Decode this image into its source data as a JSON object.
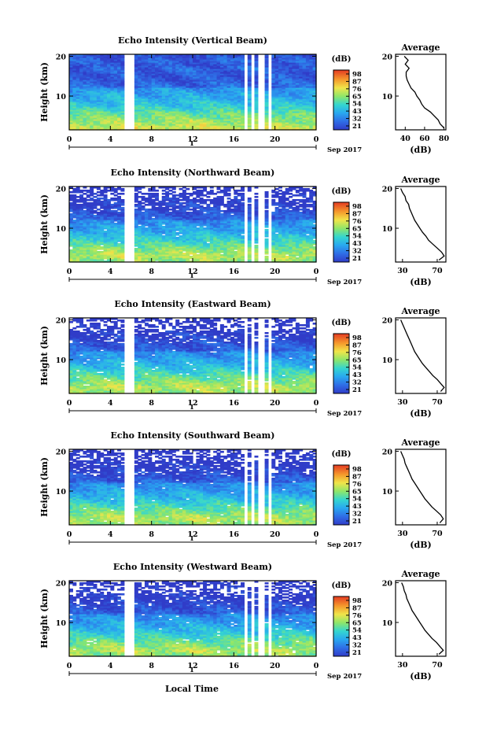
{
  "figure": {
    "xlabel": "Local Time",
    "day_label": "1",
    "date_label": "Sep 2017",
    "average_title": "Average",
    "average_xlabel": "(dB)",
    "colorbar_unit": "(dB)",
    "ylabel": "Height (km)"
  },
  "chart_data": [
    {
      "type": "heatmap",
      "title": "Echo Intensity (Vertical Beam)",
      "xlabel": "Local Time",
      "ylabel": "Height (km)",
      "x_ticks": [
        "0",
        "4",
        "8",
        "12",
        "16",
        "20",
        "0"
      ],
      "xlim": [
        0,
        24
      ],
      "y_ticks": [
        "10",
        "20"
      ],
      "ylim": [
        1.5,
        20.5
      ],
      "colorbar": {
        "label": "(dB)",
        "ticks": [
          "98",
          "87",
          "76",
          "65",
          "54",
          "43",
          "32",
          "21"
        ],
        "range": [
          21,
          98
        ]
      },
      "data_gaps_hours": [
        [
          5.4,
          6.2
        ],
        [
          16.9,
          17.3
        ],
        [
          17.7,
          18.1
        ],
        [
          18.5,
          18.9
        ],
        [
          19.3,
          19.7
        ]
      ],
      "average_profile": {
        "title": "Average",
        "xlabel": "(dB)",
        "x_ticks": [
          "40",
          "60",
          "80"
        ],
        "xlim": [
          30,
          82
        ],
        "height_km": [
          2,
          3,
          4,
          5,
          6,
          7,
          8,
          9,
          10,
          11,
          12,
          13,
          14,
          15,
          16,
          17,
          18,
          19,
          20
        ],
        "intensity_db": [
          80,
          76,
          74,
          70,
          66,
          60,
          57,
          55,
          52,
          50,
          46,
          44,
          42,
          41,
          41,
          44,
          40,
          43,
          39
        ]
      }
    },
    {
      "type": "heatmap",
      "title": "Echo Intensity (Northward Beam)",
      "xlabel": "Local Time",
      "ylabel": "Height (km)",
      "x_ticks": [
        "0",
        "4",
        "8",
        "12",
        "16",
        "20",
        "0"
      ],
      "xlim": [
        0,
        24
      ],
      "y_ticks": [
        "10",
        "20"
      ],
      "ylim": [
        1.5,
        20.5
      ],
      "colorbar": {
        "label": "(dB)",
        "ticks": [
          "98",
          "87",
          "76",
          "65",
          "54",
          "43",
          "32",
          "21"
        ],
        "range": [
          21,
          98
        ]
      },
      "data_gaps_hours": [
        [
          5.4,
          6.2
        ],
        [
          16.9,
          17.3
        ],
        [
          17.7,
          18.1
        ],
        [
          18.5,
          18.9
        ],
        [
          19.3,
          19.7
        ]
      ],
      "average_profile": {
        "title": "Average",
        "xlabel": "(dB)",
        "x_ticks": [
          "30",
          "70"
        ],
        "xlim": [
          22,
          80
        ],
        "height_km": [
          2,
          3,
          4,
          5,
          6,
          7,
          8,
          9,
          10,
          11,
          12,
          13,
          14,
          15,
          16,
          17,
          18,
          19,
          20
        ],
        "intensity_db": [
          72,
          78,
          75,
          70,
          65,
          60,
          57,
          53,
          50,
          47,
          44,
          42,
          40,
          38,
          37,
          34,
          33,
          30,
          28
        ]
      }
    },
    {
      "type": "heatmap",
      "title": "Echo Intensity (Eastward Beam)",
      "xlabel": "Local Time",
      "ylabel": "Height (km)",
      "x_ticks": [
        "0",
        "4",
        "8",
        "12",
        "16",
        "20",
        "0"
      ],
      "xlim": [
        0,
        24
      ],
      "y_ticks": [
        "10",
        "20"
      ],
      "ylim": [
        1.5,
        20.5
      ],
      "colorbar": {
        "label": "(dB)",
        "ticks": [
          "98",
          "87",
          "76",
          "65",
          "54",
          "43",
          "32",
          "21"
        ],
        "range": [
          21,
          98
        ]
      },
      "data_gaps_hours": [
        [
          5.4,
          6.2
        ],
        [
          16.9,
          17.3
        ],
        [
          17.7,
          18.1
        ],
        [
          18.5,
          18.9
        ],
        [
          19.3,
          19.7
        ]
      ],
      "average_profile": {
        "title": "Average",
        "xlabel": "(dB)",
        "x_ticks": [
          "30",
          "70"
        ],
        "xlim": [
          22,
          80
        ],
        "height_km": [
          2,
          3,
          4,
          5,
          6,
          7,
          8,
          9,
          10,
          11,
          12,
          13,
          14,
          15,
          16,
          17,
          18,
          19,
          20
        ],
        "intensity_db": [
          74,
          78,
          74,
          70,
          65,
          61,
          57,
          53,
          50,
          47,
          44,
          42,
          40,
          38,
          36,
          34,
          32,
          30,
          28
        ]
      }
    },
    {
      "type": "heatmap",
      "title": "Echo Intensity (Southward Beam)",
      "xlabel": "Local Time",
      "ylabel": "Height (km)",
      "x_ticks": [
        "0",
        "4",
        "8",
        "12",
        "16",
        "20",
        "0"
      ],
      "xlim": [
        0,
        24
      ],
      "y_ticks": [
        "10",
        "20"
      ],
      "ylim": [
        1.5,
        20.5
      ],
      "colorbar": {
        "label": "(dB)",
        "ticks": [
          "98",
          "87",
          "76",
          "65",
          "54",
          "43",
          "32",
          "21"
        ],
        "range": [
          21,
          98
        ]
      },
      "data_gaps_hours": [
        [
          5.4,
          6.2
        ],
        [
          16.9,
          17.3
        ],
        [
          17.7,
          18.1
        ],
        [
          18.5,
          18.9
        ],
        [
          19.3,
          19.7
        ]
      ],
      "average_profile": {
        "title": "Average",
        "xlabel": "(dB)",
        "x_ticks": [
          "30",
          "70"
        ],
        "xlim": [
          22,
          80
        ],
        "height_km": [
          2,
          3,
          4,
          5,
          6,
          7,
          8,
          9,
          10,
          11,
          12,
          13,
          14,
          15,
          16,
          17,
          18,
          19,
          20
        ],
        "intensity_db": [
          73,
          77,
          74,
          69,
          64,
          60,
          56,
          53,
          50,
          47,
          44,
          41,
          39,
          37,
          35,
          33,
          32,
          30,
          28
        ]
      }
    },
    {
      "type": "heatmap",
      "title": "Echo Intensity (Westward Beam)",
      "xlabel": "Local Time",
      "ylabel": "Height (km)",
      "x_ticks": [
        "0",
        "4",
        "8",
        "12",
        "16",
        "20",
        "0"
      ],
      "xlim": [
        0,
        24
      ],
      "y_ticks": [
        "10",
        "20"
      ],
      "ylim": [
        1.5,
        20.5
      ],
      "colorbar": {
        "label": "(dB)",
        "ticks": [
          "98",
          "87",
          "76",
          "65",
          "54",
          "43",
          "32",
          "21"
        ],
        "range": [
          21,
          98
        ]
      },
      "data_gaps_hours": [
        [
          5.4,
          6.2
        ],
        [
          16.9,
          17.3
        ],
        [
          17.7,
          18.1
        ],
        [
          18.5,
          18.9
        ],
        [
          19.3,
          19.7
        ]
      ],
      "average_profile": {
        "title": "Average",
        "xlabel": "(dB)",
        "x_ticks": [
          "30",
          "70"
        ],
        "xlim": [
          22,
          80
        ],
        "height_km": [
          2,
          3,
          4,
          5,
          6,
          7,
          8,
          9,
          10,
          11,
          12,
          13,
          14,
          15,
          16,
          17,
          18,
          19,
          20
        ],
        "intensity_db": [
          72,
          77,
          73,
          69,
          64,
          60,
          56,
          53,
          50,
          47,
          44,
          41,
          39,
          37,
          35,
          34,
          32,
          31,
          29
        ]
      }
    }
  ]
}
